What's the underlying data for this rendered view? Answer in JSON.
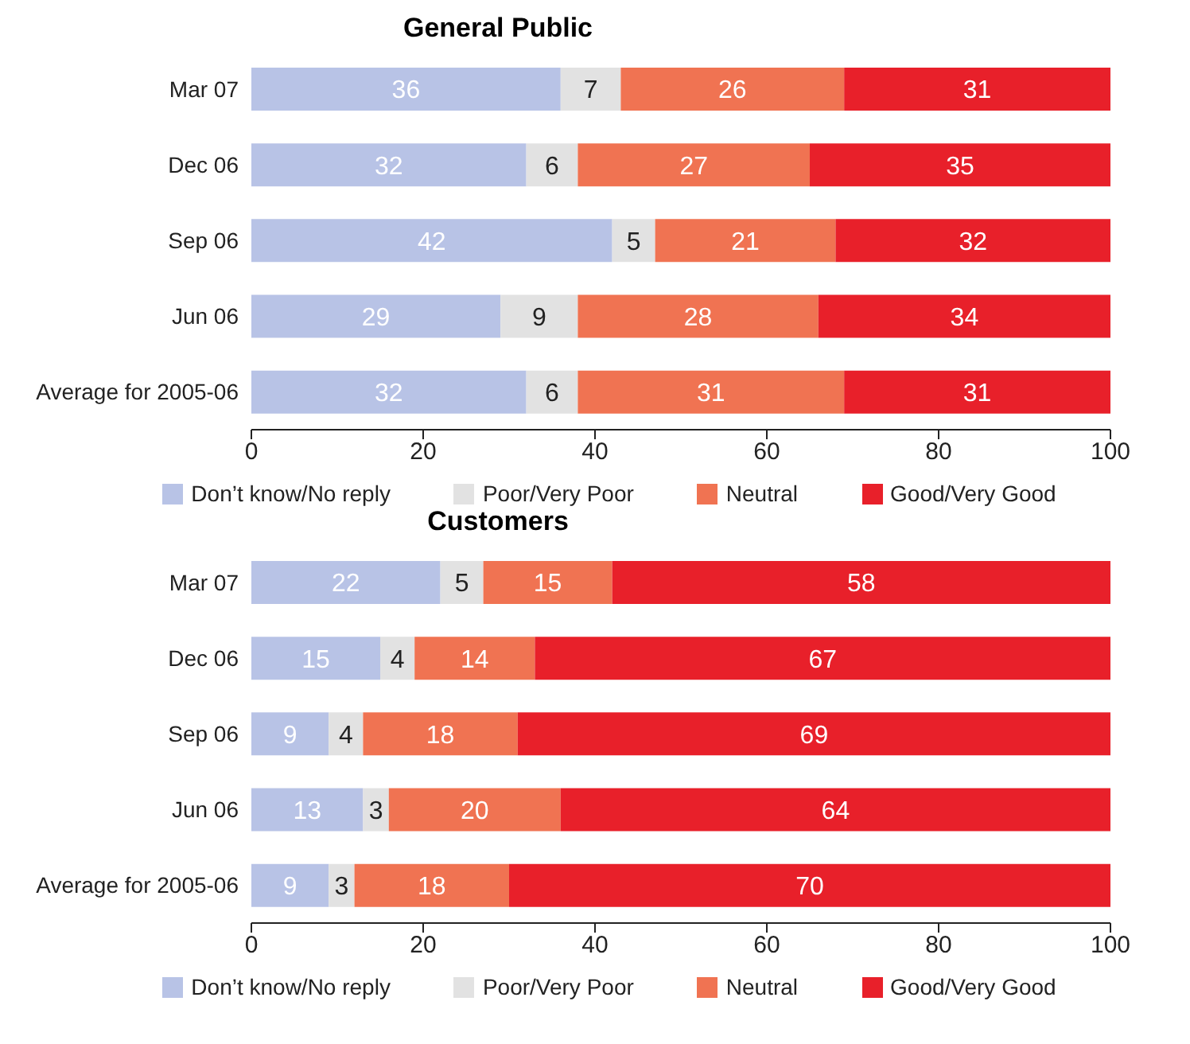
{
  "chart_data": [
    {
      "type": "bar",
      "title": "General Public",
      "orientation": "horizontal",
      "stacked": true,
      "data_labels": true,
      "legend": "bottom",
      "categories": [
        "Mar 07",
        "Dec 06",
        "Sep 06",
        "Jun 06",
        "Average for 2005-06"
      ],
      "xlim": [
        0,
        100
      ],
      "xticks": [
        0,
        20,
        40,
        60,
        80,
        100
      ],
      "series": [
        {
          "name": "Don’t know/No reply",
          "color": "#b8c3e6",
          "values": [
            36,
            32,
            42,
            29,
            32
          ]
        },
        {
          "name": "Poor/Very Poor",
          "color": "#e2e2e2",
          "values": [
            7,
            6,
            5,
            9,
            6
          ]
        },
        {
          "name": "Neutral",
          "color": "#f07352",
          "values": [
            26,
            27,
            21,
            28,
            31
          ]
        },
        {
          "name": "Good/Very Good",
          "color": "#e8202a",
          "values": [
            31,
            35,
            32,
            34,
            31
          ]
        }
      ]
    },
    {
      "type": "bar",
      "title": "Customers",
      "orientation": "horizontal",
      "stacked": true,
      "data_labels": true,
      "legend": "bottom",
      "categories": [
        "Mar 07",
        "Dec 06",
        "Sep 06",
        "Jun 06",
        "Average for 2005-06"
      ],
      "xlim": [
        0,
        100
      ],
      "xticks": [
        0,
        20,
        40,
        60,
        80,
        100
      ],
      "series": [
        {
          "name": "Don’t know/No reply",
          "color": "#b8c3e6",
          "values": [
            22,
            15,
            9,
            13,
            9
          ]
        },
        {
          "name": "Poor/Very Poor",
          "color": "#e2e2e2",
          "values": [
            5,
            4,
            4,
            3,
            3
          ]
        },
        {
          "name": "Neutral",
          "color": "#f07352",
          "values": [
            15,
            14,
            18,
            20,
            18
          ]
        },
        {
          "name": "Good/Very Good",
          "color": "#e8202a",
          "values": [
            58,
            67,
            69,
            64,
            70
          ]
        }
      ]
    }
  ]
}
